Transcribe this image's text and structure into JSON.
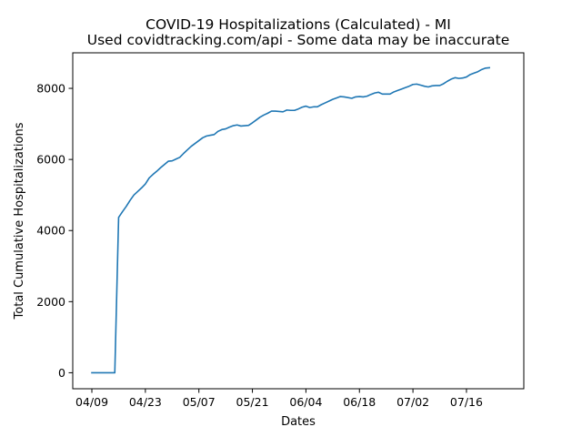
{
  "chart_data": {
    "type": "line",
    "title": "COVID-19 Hospitalizations (Calculated) - MI",
    "subtitle": "Used covidtracking.com/api - Some data may be inaccurate",
    "xlabel": "Dates",
    "ylabel": "Total Cumulative Hospitalizations",
    "xlim": [
      "2020-04-04",
      "2020-07-31"
    ],
    "ylim": [
      -450,
      9000
    ],
    "x_ticks": [
      {
        "date": "2020-04-09",
        "label": "04/09"
      },
      {
        "date": "2020-04-23",
        "label": "04/23"
      },
      {
        "date": "2020-05-07",
        "label": "05/07"
      },
      {
        "date": "2020-05-21",
        "label": "05/21"
      },
      {
        "date": "2020-06-04",
        "label": "06/04"
      },
      {
        "date": "2020-06-18",
        "label": "06/18"
      },
      {
        "date": "2020-07-02",
        "label": "07/02"
      },
      {
        "date": "2020-07-16",
        "label": "07/16"
      }
    ],
    "y_ticks": [
      0,
      2000,
      4000,
      6000,
      8000
    ],
    "grid": false,
    "legend": "none",
    "color": "#1f77b4",
    "series": [
      {
        "points": [
          [
            "2020-04-09",
            0
          ],
          [
            "2020-04-10",
            0
          ],
          [
            "2020-04-11",
            0
          ],
          [
            "2020-04-12",
            0
          ],
          [
            "2020-04-13",
            0
          ],
          [
            "2020-04-14",
            0
          ],
          [
            "2020-04-15",
            0
          ],
          [
            "2020-04-16",
            4370
          ],
          [
            "2020-04-17",
            4530
          ],
          [
            "2020-04-18",
            4680
          ],
          [
            "2020-04-19",
            4850
          ],
          [
            "2020-04-20",
            5000
          ],
          [
            "2020-04-21",
            5100
          ],
          [
            "2020-04-22",
            5200
          ],
          [
            "2020-04-23",
            5310
          ],
          [
            "2020-04-24",
            5480
          ],
          [
            "2020-04-25",
            5580
          ],
          [
            "2020-04-26",
            5670
          ],
          [
            "2020-04-27",
            5770
          ],
          [
            "2020-04-28",
            5860
          ],
          [
            "2020-04-29",
            5950
          ],
          [
            "2020-04-30",
            5960
          ],
          [
            "2020-05-01",
            6010
          ],
          [
            "2020-05-02",
            6060
          ],
          [
            "2020-05-03",
            6170
          ],
          [
            "2020-05-04",
            6270
          ],
          [
            "2020-05-05",
            6370
          ],
          [
            "2020-05-06",
            6450
          ],
          [
            "2020-05-07",
            6530
          ],
          [
            "2020-05-08",
            6610
          ],
          [
            "2020-05-09",
            6660
          ],
          [
            "2020-05-10",
            6680
          ],
          [
            "2020-05-11",
            6700
          ],
          [
            "2020-05-12",
            6790
          ],
          [
            "2020-05-13",
            6840
          ],
          [
            "2020-05-14",
            6860
          ],
          [
            "2020-05-15",
            6910
          ],
          [
            "2020-05-16",
            6950
          ],
          [
            "2020-05-17",
            6970
          ],
          [
            "2020-05-18",
            6940
          ],
          [
            "2020-05-19",
            6950
          ],
          [
            "2020-05-20",
            6960
          ],
          [
            "2020-05-21",
            7030
          ],
          [
            "2020-05-22",
            7110
          ],
          [
            "2020-05-23",
            7190
          ],
          [
            "2020-05-24",
            7250
          ],
          [
            "2020-05-25",
            7300
          ],
          [
            "2020-05-26",
            7360
          ],
          [
            "2020-05-27",
            7360
          ],
          [
            "2020-05-28",
            7350
          ],
          [
            "2020-05-29",
            7340
          ],
          [
            "2020-05-30",
            7390
          ],
          [
            "2020-05-31",
            7380
          ],
          [
            "2020-06-01",
            7380
          ],
          [
            "2020-06-02",
            7420
          ],
          [
            "2020-06-03",
            7470
          ],
          [
            "2020-06-04",
            7500
          ],
          [
            "2020-06-05",
            7460
          ],
          [
            "2020-06-06",
            7480
          ],
          [
            "2020-06-07",
            7480
          ],
          [
            "2020-06-08",
            7540
          ],
          [
            "2020-06-09",
            7590
          ],
          [
            "2020-06-10",
            7640
          ],
          [
            "2020-06-11",
            7690
          ],
          [
            "2020-06-12",
            7730
          ],
          [
            "2020-06-13",
            7770
          ],
          [
            "2020-06-14",
            7760
          ],
          [
            "2020-06-15",
            7740
          ],
          [
            "2020-06-16",
            7720
          ],
          [
            "2020-06-17",
            7760
          ],
          [
            "2020-06-18",
            7770
          ],
          [
            "2020-06-19",
            7760
          ],
          [
            "2020-06-20",
            7780
          ],
          [
            "2020-06-21",
            7830
          ],
          [
            "2020-06-22",
            7870
          ],
          [
            "2020-06-23",
            7890
          ],
          [
            "2020-06-24",
            7840
          ],
          [
            "2020-06-25",
            7840
          ],
          [
            "2020-06-26",
            7840
          ],
          [
            "2020-06-27",
            7900
          ],
          [
            "2020-06-28",
            7940
          ],
          [
            "2020-06-29",
            7980
          ],
          [
            "2020-06-30",
            8020
          ],
          [
            "2020-07-01",
            8060
          ],
          [
            "2020-07-02",
            8110
          ],
          [
            "2020-07-03",
            8120
          ],
          [
            "2020-07-04",
            8090
          ],
          [
            "2020-07-05",
            8060
          ],
          [
            "2020-07-06",
            8040
          ],
          [
            "2020-07-07",
            8070
          ],
          [
            "2020-07-08",
            8080
          ],
          [
            "2020-07-09",
            8080
          ],
          [
            "2020-07-10",
            8130
          ],
          [
            "2020-07-11",
            8200
          ],
          [
            "2020-07-12",
            8260
          ],
          [
            "2020-07-13",
            8300
          ],
          [
            "2020-07-14",
            8280
          ],
          [
            "2020-07-15",
            8290
          ],
          [
            "2020-07-16",
            8320
          ],
          [
            "2020-07-17",
            8390
          ],
          [
            "2020-07-18",
            8430
          ],
          [
            "2020-07-19",
            8470
          ],
          [
            "2020-07-20",
            8530
          ],
          [
            "2020-07-21",
            8570
          ],
          [
            "2020-07-22",
            8580
          ]
        ]
      }
    ]
  }
}
